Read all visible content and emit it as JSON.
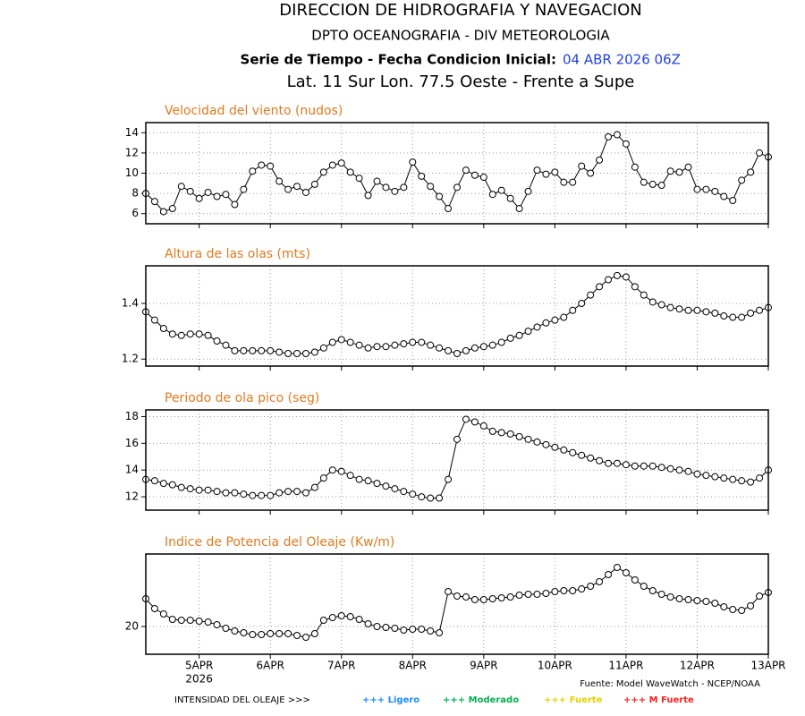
{
  "header": {
    "title": "DIRECCION DE HIDROGRAFIA Y NAVEGACION",
    "subtitle": "DPTO OCEANOGRAFIA - DIV METEOROLOGIA",
    "series_label": "Serie de Tiempo - Fecha Condicion Inicial:",
    "init_date": "04 ABR 2026 06Z",
    "location": "Lat. 11 Sur  Lon. 77.5 Oeste - Frente a Supe"
  },
  "chart_data": [
    {
      "type": "line",
      "title": "Velocidad del viento (nudos)",
      "color": "#000000",
      "grid": true,
      "x": [
        0,
        3,
        6,
        9,
        12,
        15,
        18,
        21,
        24,
        27,
        30,
        33,
        36,
        39,
        42,
        45,
        48,
        51,
        54,
        57,
        60,
        63,
        66,
        69,
        72,
        75,
        78,
        81,
        84,
        87,
        90,
        93,
        96,
        99,
        102,
        105,
        108,
        111,
        114,
        117,
        120,
        123,
        126,
        129,
        132,
        135,
        138,
        141,
        144,
        147,
        150,
        153,
        156,
        159,
        162,
        165,
        168,
        171,
        174,
        177,
        180,
        183,
        186,
        189,
        192,
        195,
        198,
        201,
        204,
        207,
        210
      ],
      "values": [
        8.0,
        7.2,
        6.2,
        6.5,
        8.7,
        8.2,
        7.5,
        8.1,
        7.7,
        7.9,
        6.9,
        8.4,
        10.2,
        10.8,
        10.7,
        9.2,
        8.4,
        8.7,
        8.1,
        8.9,
        10.1,
        10.8,
        11.0,
        10.1,
        9.5,
        7.8,
        9.2,
        8.6,
        8.2,
        8.6,
        11.1,
        9.7,
        8.7,
        7.7,
        6.5,
        8.6,
        10.3,
        9.8,
        9.6,
        7.9,
        8.3,
        7.5,
        6.5,
        8.2,
        10.3,
        9.9,
        10.1,
        9.1,
        9.1,
        10.7,
        10.0,
        11.3,
        13.6,
        13.8,
        12.9,
        10.6,
        9.1,
        8.9,
        8.8,
        10.2,
        10.1,
        10.6,
        8.4,
        8.4,
        8.2,
        7.7,
        7.3,
        9.3,
        10.1,
        12.0,
        11.6
      ],
      "xlim": [
        0,
        210
      ],
      "xticks": [
        18,
        42,
        66,
        90,
        114,
        138,
        162,
        186,
        210
      ],
      "ylim": [
        5,
        15
      ],
      "yticks": [
        6,
        8,
        10,
        12,
        14
      ]
    },
    {
      "type": "line",
      "title": "Altura de las olas (mts)",
      "color": "#000000",
      "grid": true,
      "x": [
        0,
        3,
        6,
        9,
        12,
        15,
        18,
        21,
        24,
        27,
        30,
        33,
        36,
        39,
        42,
        45,
        48,
        51,
        54,
        57,
        60,
        63,
        66,
        69,
        72,
        75,
        78,
        81,
        84,
        87,
        90,
        93,
        96,
        99,
        102,
        105,
        108,
        111,
        114,
        117,
        120,
        123,
        126,
        129,
        132,
        135,
        138,
        141,
        144,
        147,
        150,
        153,
        156,
        159,
        162,
        165,
        168,
        171,
        174,
        177,
        180,
        183,
        186,
        189,
        192,
        195,
        198,
        201,
        204,
        207,
        210
      ],
      "values": [
        1.37,
        1.34,
        1.31,
        1.29,
        1.285,
        1.29,
        1.29,
        1.285,
        1.265,
        1.25,
        1.23,
        1.23,
        1.23,
        1.23,
        1.23,
        1.225,
        1.22,
        1.22,
        1.22,
        1.225,
        1.24,
        1.26,
        1.27,
        1.26,
        1.25,
        1.24,
        1.245,
        1.245,
        1.25,
        1.255,
        1.26,
        1.26,
        1.25,
        1.24,
        1.23,
        1.22,
        1.23,
        1.24,
        1.245,
        1.25,
        1.26,
        1.275,
        1.285,
        1.3,
        1.315,
        1.33,
        1.34,
        1.35,
        1.375,
        1.4,
        1.43,
        1.46,
        1.485,
        1.5,
        1.495,
        1.46,
        1.43,
        1.405,
        1.395,
        1.385,
        1.38,
        1.375,
        1.375,
        1.37,
        1.365,
        1.355,
        1.35,
        1.35,
        1.365,
        1.375,
        1.385
      ],
      "xlim": [
        0,
        210
      ],
      "xticks": [
        18,
        42,
        66,
        90,
        114,
        138,
        162,
        186,
        210
      ],
      "ylim": [
        1.175,
        1.535
      ],
      "yticks": [
        1.2,
        1.4
      ]
    },
    {
      "type": "line",
      "title": "Periodo de ola pico (seg)",
      "color": "#000000",
      "grid": true,
      "x": [
        0,
        3,
        6,
        9,
        12,
        15,
        18,
        21,
        24,
        27,
        30,
        33,
        36,
        39,
        42,
        45,
        48,
        51,
        54,
        57,
        60,
        63,
        66,
        69,
        72,
        75,
        78,
        81,
        84,
        87,
        90,
        93,
        96,
        99,
        102,
        105,
        108,
        111,
        114,
        117,
        120,
        123,
        126,
        129,
        132,
        135,
        138,
        141,
        144,
        147,
        150,
        153,
        156,
        159,
        162,
        165,
        168,
        171,
        174,
        177,
        180,
        183,
        186,
        189,
        192,
        195,
        198,
        201,
        204,
        207,
        210
      ],
      "values": [
        13.3,
        13.2,
        13.0,
        12.9,
        12.7,
        12.6,
        12.5,
        12.5,
        12.4,
        12.3,
        12.3,
        12.2,
        12.1,
        12.1,
        12.1,
        12.3,
        12.4,
        12.4,
        12.3,
        12.7,
        13.4,
        14.0,
        13.9,
        13.6,
        13.3,
        13.2,
        13.0,
        12.8,
        12.6,
        12.4,
        12.2,
        12.0,
        11.9,
        11.9,
        13.3,
        16.3,
        17.8,
        17.6,
        17.3,
        16.9,
        16.8,
        16.7,
        16.5,
        16.3,
        16.1,
        15.9,
        15.7,
        15.5,
        15.3,
        15.1,
        14.9,
        14.7,
        14.5,
        14.5,
        14.4,
        14.3,
        14.3,
        14.3,
        14.2,
        14.1,
        14.0,
        13.9,
        13.7,
        13.6,
        13.5,
        13.4,
        13.3,
        13.2,
        13.1,
        13.4,
        14.0
      ],
      "xlim": [
        0,
        210
      ],
      "xticks": [
        18,
        42,
        66,
        90,
        114,
        138,
        162,
        186,
        210
      ],
      "ylim": [
        11,
        18.5
      ],
      "yticks": [
        12,
        14,
        16,
        18
      ]
    },
    {
      "type": "line",
      "title": "Indice de Potencia del Oleaje (Kw/m)",
      "color": "#000000",
      "grid": true,
      "x": [
        0,
        3,
        6,
        9,
        12,
        15,
        18,
        21,
        24,
        27,
        30,
        33,
        36,
        39,
        42,
        45,
        48,
        51,
        54,
        57,
        60,
        63,
        66,
        69,
        72,
        75,
        78,
        81,
        84,
        87,
        90,
        93,
        96,
        99,
        102,
        105,
        108,
        111,
        114,
        117,
        120,
        123,
        126,
        129,
        132,
        135,
        138,
        141,
        144,
        147,
        150,
        153,
        156,
        159,
        162,
        165,
        168,
        171,
        174,
        177,
        180,
        183,
        186,
        189,
        192,
        195,
        198,
        201,
        204,
        207,
        210
      ],
      "values": [
        23.1,
        22.0,
        21.4,
        20.8,
        20.7,
        20.7,
        20.6,
        20.5,
        20.2,
        19.8,
        19.5,
        19.3,
        19.1,
        19.1,
        19.2,
        19.2,
        19.2,
        19.0,
        18.8,
        19.2,
        20.7,
        21.0,
        21.2,
        21.1,
        20.8,
        20.3,
        20.0,
        19.9,
        19.8,
        19.6,
        19.7,
        19.7,
        19.5,
        19.3,
        23.9,
        23.4,
        23.3,
        23.0,
        23.0,
        23.1,
        23.2,
        23.3,
        23.5,
        23.6,
        23.6,
        23.7,
        23.9,
        24.0,
        24.0,
        24.2,
        24.5,
        25.0,
        25.8,
        26.6,
        26.0,
        25.2,
        24.5,
        24.0,
        23.6,
        23.3,
        23.1,
        23.0,
        22.9,
        22.8,
        22.6,
        22.2,
        21.9,
        21.8,
        22.3,
        23.4,
        23.8
      ],
      "xlim": [
        0,
        210
      ],
      "xticks": [
        {
          "value": 18,
          "label": "5APR"
        },
        {
          "value": 42,
          "label": "6APR"
        },
        {
          "value": 66,
          "label": "7APR"
        },
        {
          "value": 90,
          "label": "8APR"
        },
        {
          "value": 114,
          "label": "9APR"
        },
        {
          "value": 138,
          "label": "10APR"
        },
        {
          "value": 162,
          "label": "11APR"
        },
        {
          "value": 186,
          "label": "12APR"
        },
        {
          "value": 210,
          "label": "13APR"
        }
      ],
      "x_sublabel": "2026",
      "ylim": [
        16.9,
        28.1
      ],
      "yticks": [
        20
      ]
    }
  ],
  "footer": {
    "source": "Fuente: Model WaveWatch - NCEP/NOAA",
    "legend_title": "INTENSIDAD DEL OLEAJE >>>",
    "legend": [
      {
        "label": "+++ Ligero",
        "color": "#1a8cff"
      },
      {
        "label": "+++ Moderado",
        "color": "#00b050"
      },
      {
        "label": "+++ Fuerte",
        "color": "#e6d000"
      },
      {
        "label": "+++ M Fuerte",
        "color": "#ff2020"
      }
    ]
  }
}
